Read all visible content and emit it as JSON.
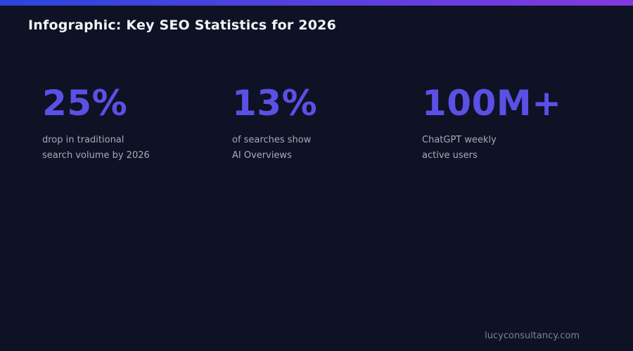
{
  "header": {
    "title": "Infographic: Key SEO Statistics for 2026"
  },
  "stats": [
    {
      "value": "25%",
      "desc_line1": "drop in traditional",
      "desc_line2": "search volume by 2026"
    },
    {
      "value": "13%",
      "desc_line1": "of searches show",
      "desc_line2": "AI Overviews"
    },
    {
      "value": "100M+",
      "desc_line1": "ChatGPT weekly",
      "desc_line2": "active users"
    }
  ],
  "footer": {
    "site": "lucyconsultancy.com"
  },
  "colors": {
    "background": "#0e1224",
    "accent_gradient_start": "#2a46d9",
    "accent_gradient_end": "#8438df",
    "stat_value": "#5b50e6",
    "title_text": "#f2f3f7",
    "desc_text": "#a6abba",
    "footer_text": "#7d8290"
  }
}
